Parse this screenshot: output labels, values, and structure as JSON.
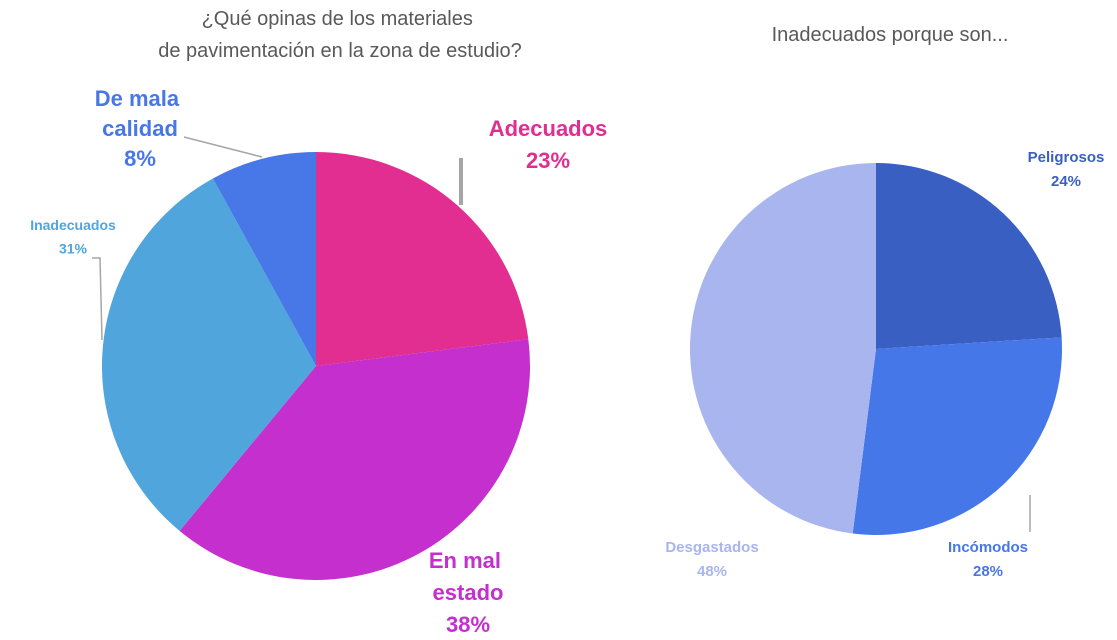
{
  "chart_data": [
    {
      "type": "pie",
      "title": "¿Qué opinas de los materiales de pavimentación en la zona de estudio?",
      "categories": [
        "Adecuados",
        "En mal estado",
        "Inadecuados",
        "De mala calidad"
      ],
      "values": [
        23,
        38,
        31,
        8
      ],
      "value_labels": [
        "23%",
        "38%",
        "31%",
        "8%"
      ],
      "colors": [
        "#e22d91",
        "#c42fce",
        "#4fa5dc",
        "#4877e8"
      ]
    },
    {
      "type": "pie",
      "title": "Inadecuados porque son...",
      "categories": [
        "Peligrosos",
        "Incómodos",
        "Desgastados"
      ],
      "values": [
        24,
        28,
        48
      ],
      "value_labels": [
        "24%",
        "28%",
        "48%"
      ],
      "colors": [
        "#3a5fc2",
        "#4677e8",
        "#a8b5ef"
      ]
    }
  ]
}
